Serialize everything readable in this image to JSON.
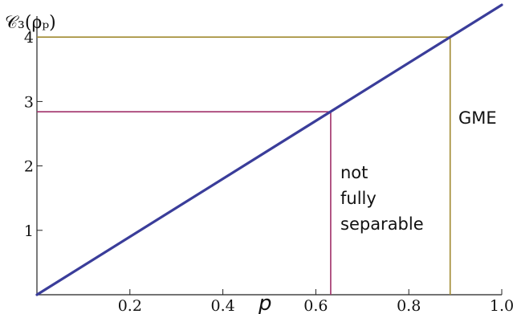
{
  "chart_data": {
    "type": "line",
    "xlabel": "p",
    "ylabel": "𝒞₃(ρₚ)",
    "xlim": [
      0,
      1.0
    ],
    "ylim": [
      0,
      4.3
    ],
    "x_ticks": [
      0.2,
      0.4,
      0.6,
      0.8,
      1.0
    ],
    "x_tick_labels": [
      "0.2",
      "0.4",
      "0.6",
      "0.8",
      "1.0"
    ],
    "y_ticks": [
      1,
      2,
      3,
      4
    ],
    "y_tick_labels": [
      "1",
      "2",
      "3",
      "4"
    ],
    "grid": false,
    "series": [
      {
        "x": [
          0,
          1.0
        ],
        "y": [
          0,
          4.5
        ],
        "color": "#3a3d9a"
      }
    ],
    "threshold_lines": [
      {
        "p": 0.632,
        "value": 2.84,
        "color": "#a0306a"
      },
      {
        "p": 0.889,
        "value": 4.0,
        "color": "#a08a30"
      }
    ],
    "annotations": [
      {
        "lines": [
          "not",
          "fully",
          "separable"
        ]
      },
      {
        "lines": [
          "GME"
        ]
      }
    ]
  }
}
